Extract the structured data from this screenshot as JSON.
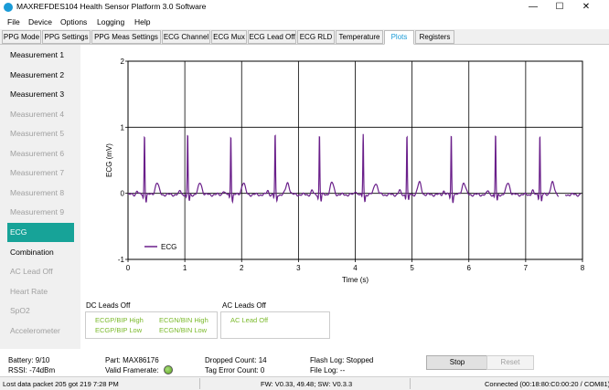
{
  "window": {
    "title": "MAXREFDES104 Health Sensor Platform 3.0 Software",
    "minimize": "—",
    "maximize": "☐",
    "close": "✕"
  },
  "menu": [
    "File",
    "Device",
    "Options",
    "Logging",
    "Help"
  ],
  "tabs": [
    "PPG Mode",
    "PPG Settings",
    "PPG Meas Settings",
    "ECG Channel",
    "ECG Mux",
    "ECG Lead Off",
    "ECG RLD",
    "Temperature",
    "Plots",
    "Registers"
  ],
  "active_tab": "Plots",
  "sidebar": [
    {
      "label": "Measurement 1",
      "state": "enabled"
    },
    {
      "label": "Measurement 2",
      "state": "enabled"
    },
    {
      "label": "Measurement 3",
      "state": "enabled"
    },
    {
      "label": "Measurement 4",
      "state": "disabled"
    },
    {
      "label": "Measurement 5",
      "state": "disabled"
    },
    {
      "label": "Measurement 6",
      "state": "disabled"
    },
    {
      "label": "Measurement 7",
      "state": "disabled"
    },
    {
      "label": "Measurement 8",
      "state": "disabled"
    },
    {
      "label": "Measurement 9",
      "state": "disabled"
    },
    {
      "label": "ECG",
      "state": "selected"
    },
    {
      "label": "Combination",
      "state": "enabled"
    },
    {
      "label": "AC Lead Off",
      "state": "disabled"
    },
    {
      "label": "Heart Rate",
      "state": "disabled"
    },
    {
      "label": "SpO2",
      "state": "disabled"
    },
    {
      "label": "Accelerometer",
      "state": "disabled"
    }
  ],
  "chart_data": {
    "type": "line",
    "title": "",
    "xlabel": "Time (s)",
    "ylabel": "ECG (mV)",
    "xlim": [
      0,
      8
    ],
    "ylim": [
      -1,
      2
    ],
    "x_ticks": [
      "0",
      "1",
      "2",
      "3",
      "4",
      "5",
      "6",
      "7",
      "8"
    ],
    "y_ticks": [
      "-1",
      "0",
      "1",
      "2"
    ],
    "grid": true,
    "legend": "bottom-left",
    "series": [
      {
        "name": "ECG",
        "color": "#6a1f8a",
        "beat_times_s": [
          0.29,
          1.05,
          1.81,
          2.59,
          3.37,
          4.14,
          4.91,
          5.69,
          6.47,
          7.25
        ],
        "r_peak_mv": 0.92,
        "s_wave_mv": -0.08,
        "t_wave_mv": 0.18,
        "baseline_mv": -0.02,
        "gap_s": [
          7.58,
          7.7
        ]
      }
    ]
  },
  "leads": {
    "dc_title": "DC Leads Off",
    "dc_items": [
      "ECGP/BIP High",
      "ECGN/BIN High",
      "ECGP/BIP Low",
      "ECGN/BIN Low"
    ],
    "ac_title": "AC Leads Off",
    "ac_items": [
      "AC Lead Off"
    ],
    "indicator_color": "#7ab92a"
  },
  "status": {
    "battery": "Battery: 9/10",
    "rssi": "RSSI: -74dBm",
    "part": "Part: MAX86176",
    "valid_framerate": "Valid Framerate:",
    "dropped": "Dropped Count: 14",
    "tag_error": "Tag Error Count: 0",
    "flash_log": "Flash Log: Stopped",
    "file_log": "File Log: --",
    "stop": "Stop",
    "reset": "Reset"
  },
  "footer": {
    "packet": "Lost data packet 205 got 219 7:28 PM",
    "fw": "FW: V0.33, 49.48; SW: V0.3.3",
    "connection": "Connected (00:18:80:C0:00:20 / COM81)"
  }
}
